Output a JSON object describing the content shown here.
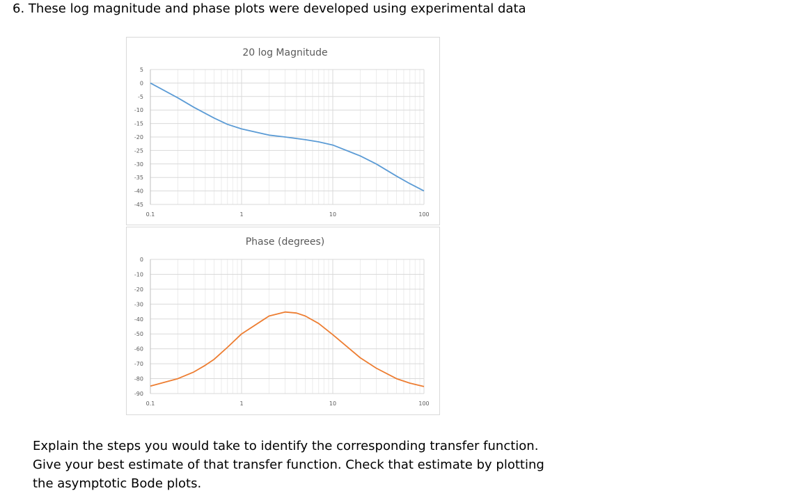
{
  "question": {
    "number": "6.",
    "text": "These log magnitude and phase plots were developed using experimental data"
  },
  "chart_data": [
    {
      "type": "line",
      "title": "20 log Magnitude",
      "xscale": "log",
      "xlim": [
        0.1,
        100
      ],
      "ylim": [
        -45,
        5
      ],
      "x_ticks": [
        "0.1",
        "1",
        "10",
        "100"
      ],
      "y_ticks": [
        "5",
        "0",
        "-5",
        "-10",
        "-15",
        "-20",
        "-25",
        "-30",
        "-35",
        "-40",
        "-45"
      ],
      "grid": true,
      "series": [
        {
          "color": "#5b9bd5",
          "x": [
            0.1,
            0.2,
            0.3,
            0.5,
            0.7,
            1,
            2,
            3,
            5,
            7,
            10,
            20,
            30,
            50,
            70,
            100
          ],
          "y": [
            0,
            -5.5,
            -9,
            -13,
            -15.3,
            -17,
            -19.3,
            -20,
            -21,
            -21.8,
            -23,
            -27,
            -30,
            -34.5,
            -37.3,
            -40
          ]
        }
      ]
    },
    {
      "type": "line",
      "title": "Phase (degrees)",
      "xscale": "log",
      "xlim": [
        0.1,
        100
      ],
      "ylim": [
        -90,
        0
      ],
      "x_ticks": [
        "0.1",
        "1",
        "10",
        "100"
      ],
      "y_ticks": [
        "0",
        "-10",
        "-20",
        "-30",
        "-40",
        "-50",
        "-60",
        "-70",
        "-80",
        "-90"
      ],
      "grid": true,
      "series": [
        {
          "color": "#ed7d31",
          "x": [
            0.1,
            0.2,
            0.3,
            0.4,
            0.5,
            0.7,
            1,
            2,
            3,
            4,
            5,
            7,
            10,
            20,
            30,
            50,
            70,
            100
          ],
          "y": [
            -85,
            -80,
            -75.5,
            -71,
            -67,
            -59,
            -50,
            -38,
            -35.3,
            -36,
            -38,
            -43,
            -50.5,
            -66,
            -73,
            -80,
            -83,
            -85.3
          ]
        }
      ]
    }
  ],
  "body": {
    "line1": "Explain the steps you would take to identify the corresponding transfer function.",
    "line2": "Give your best estimate of that transfer function.  Check that estimate by plotting",
    "line3": "the asymptotic Bode plots."
  }
}
